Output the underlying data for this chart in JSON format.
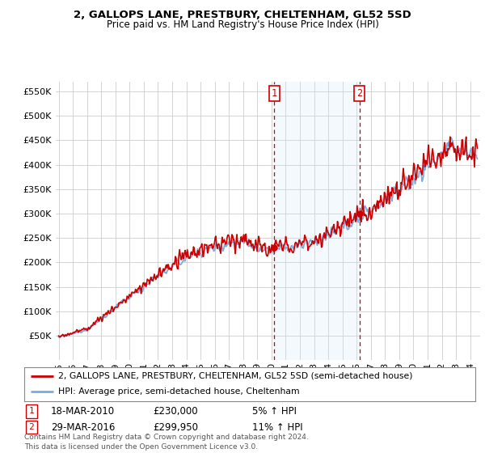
{
  "title1": "2, GALLOPS LANE, PRESTBURY, CHELTENHAM, GL52 5SD",
  "title2": "Price paid vs. HM Land Registry's House Price Index (HPI)",
  "legend_line1": "2, GALLOPS LANE, PRESTBURY, CHELTENHAM, GL52 5SD (semi-detached house)",
  "legend_line2": "HPI: Average price, semi-detached house, Cheltenham",
  "annotation1_label": "1",
  "annotation1_date": "18-MAR-2010",
  "annotation1_price": "£230,000",
  "annotation1_hpi": "5% ↑ HPI",
  "annotation1_year": 2010.2,
  "annotation1_value": 230000,
  "annotation2_label": "2",
  "annotation2_date": "29-MAR-2016",
  "annotation2_price": "£299,950",
  "annotation2_hpi": "11% ↑ HPI",
  "annotation2_year": 2016.2,
  "annotation2_value": 299950,
  "footer": "Contains HM Land Registry data © Crown copyright and database right 2024.\nThis data is licensed under the Open Government Licence v3.0.",
  "ylim": [
    0,
    570000
  ],
  "yticks": [
    50000,
    100000,
    150000,
    200000,
    250000,
    300000,
    350000,
    400000,
    450000,
    500000,
    550000
  ],
  "xlim_start": 1994.8,
  "xlim_end": 2024.7,
  "hpi_color": "#7aabdc",
  "price_color": "#cc0000",
  "vline_color": "#cc0000",
  "background_color": "#ffffff",
  "grid_color": "#cccccc",
  "highlight_fill": "#d0e8f8"
}
